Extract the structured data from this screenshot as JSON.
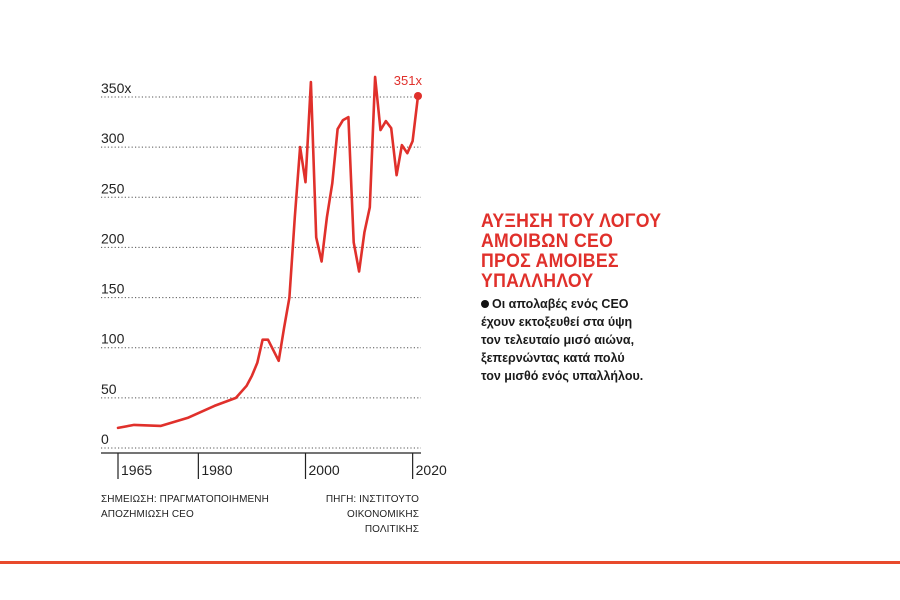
{
  "chart_data": {
    "type": "line",
    "title": "ΑΥΞΗΣΗ ΤΟΥ ΛΟΓΟΥ ΑΜΟΙΒΩΝ CEO ΠΡΟΣ ΑΜΟΙΒΕΣ ΥΠΑΛΛΗΛΟΥ",
    "ylim": [
      0,
      350
    ],
    "xlim": [
      1965,
      2021
    ],
    "y_ticks": [
      {
        "value": 350,
        "label": "350x"
      },
      {
        "value": 300,
        "label": "300"
      },
      {
        "value": 250,
        "label": "250"
      },
      {
        "value": 200,
        "label": "200"
      },
      {
        "value": 150,
        "label": "150"
      },
      {
        "value": 100,
        "label": "100"
      },
      {
        "value": 50,
        "label": "50"
      },
      {
        "value": 0,
        "label": "0"
      }
    ],
    "x_ticks": [
      {
        "value": 1965,
        "label": "1965"
      },
      {
        "value": 1980,
        "label": "1980"
      },
      {
        "value": 2000,
        "label": "2000"
      },
      {
        "value": 2020,
        "label": "2020"
      }
    ],
    "grid": "horizontal dotted",
    "line_color": "#e0302b",
    "end_label": "351x",
    "series": [
      {
        "x": [
          1965,
          1968,
          1973,
          1978,
          1983,
          1987,
          1989,
          1990,
          1991,
          1992,
          1993,
          1995,
          1996,
          1997,
          1998,
          1999,
          2000,
          2001,
          2002,
          2003,
          2004,
          2005,
          2006,
          2007,
          2008,
          2009,
          2010,
          2011,
          2012,
          2013,
          2014,
          2015,
          2016,
          2017,
          2018,
          2019,
          2020,
          2021
        ],
        "y": [
          20,
          23,
          22,
          30,
          42,
          50,
          62,
          72,
          85,
          108,
          108,
          87,
          120,
          150,
          230,
          300,
          265,
          365,
          210,
          186,
          230,
          264,
          318,
          327,
          330,
          205,
          176,
          215,
          240,
          370,
          317,
          326,
          319,
          272,
          302,
          294,
          306,
          351
        ]
      }
    ]
  },
  "side": {
    "title_lines": [
      "ΑΥΞΗΣΗ ΤΟΥ ΛΟΓΟΥ",
      "ΑΜΟΙΒΩΝ CEO",
      "ΠΡΟΣ ΑΜΟΙΒΕΣ",
      "ΥΠΑΛΛΗΛΟΥ"
    ],
    "body_lines": [
      "Οι απολαβές ενός CEO",
      "έχουν εκτοξευθεί στα ύψη",
      "τον τελευταίο μισό αιώνα,",
      "ξεπερνώντας κατά πολύ",
      "τον μισθό ενός υπαλλήλου."
    ]
  },
  "notes": {
    "left": [
      "ΣΗΜΕΙΩΣΗ: ΠΡΑΓΜΑΤΟΠΟΙΗΜΕΝΗ",
      "ΑΠΟΖΗΜΙΩΣΗ CEO"
    ],
    "right": [
      "ΠΗΓΗ: ΙΝΣΤΙΤΟΥΤΟ",
      "ΟΙΚΟΝΟΜΙΚΗΣ ΠΟΛΙΤΙΚΗΣ"
    ]
  }
}
